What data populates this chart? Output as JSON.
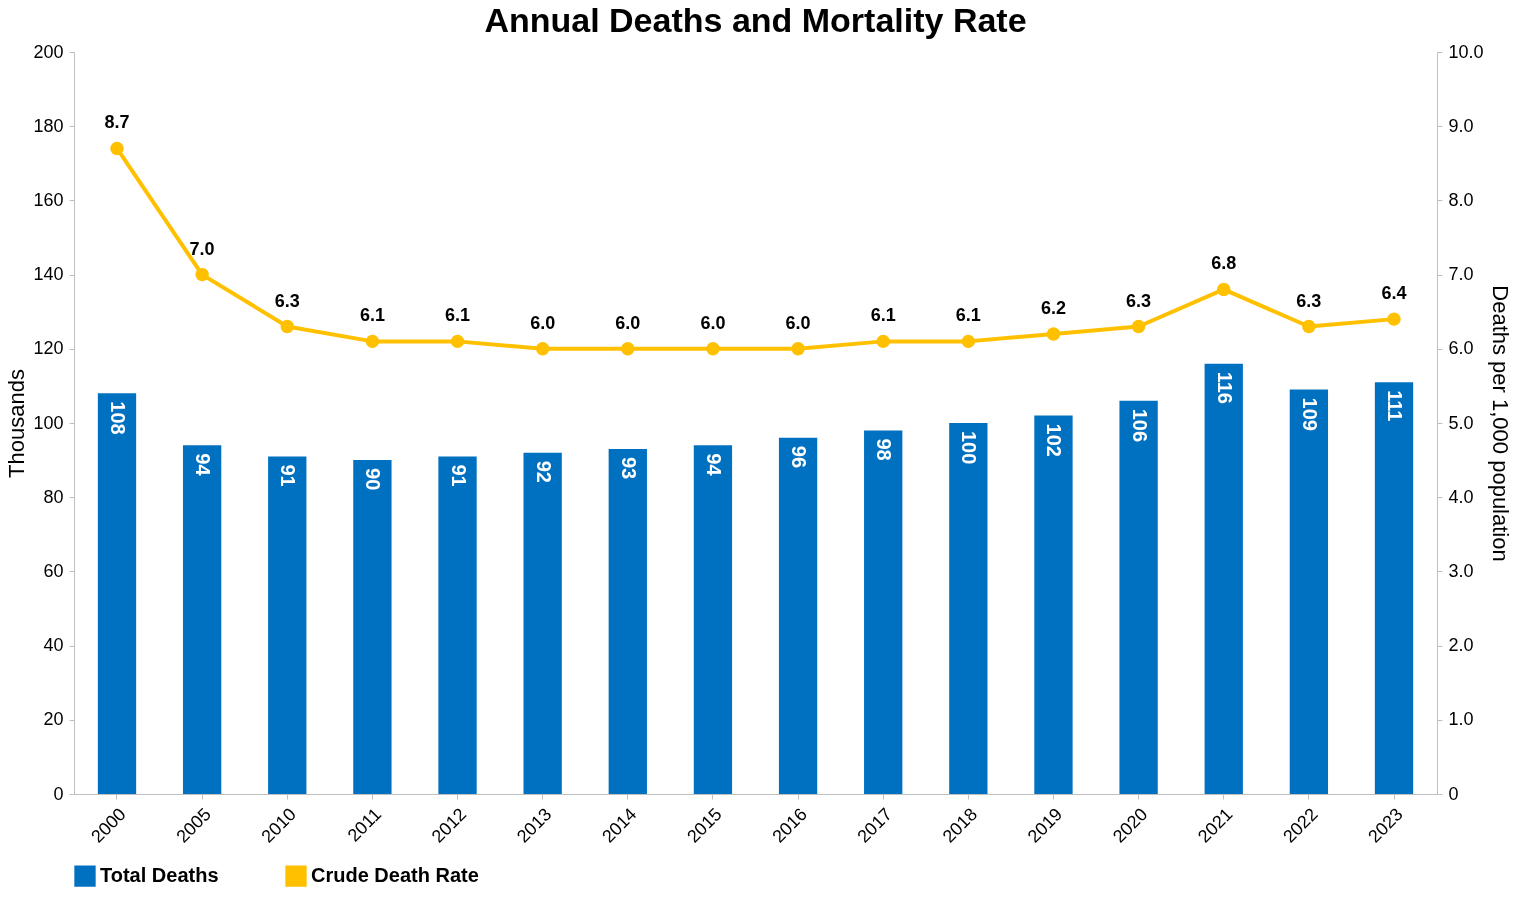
{
  "chart_data": {
    "type": "bar",
    "title": "Annual Deaths and Mortality Rate",
    "ylabel": "Thousands",
    "y2label": "Deaths per 1,000 population",
    "categories": [
      "2000",
      "2005",
      "2010",
      "2011",
      "2012",
      "2013",
      "2014",
      "2015",
      "2016",
      "2017",
      "2018",
      "2019",
      "2020",
      "2021",
      "2022",
      "2023"
    ],
    "series": [
      {
        "name": "Total Deaths",
        "color": "#0070c0",
        "values": [
          108,
          94,
          91,
          90,
          91,
          92,
          93,
          94,
          96,
          98,
          100,
          102,
          106,
          116,
          109,
          111
        ],
        "value_labels": [
          "108",
          "94",
          "91",
          "90",
          "91",
          "92",
          "93",
          "94",
          "96",
          "98",
          "100",
          "102",
          "106",
          "116",
          "109",
          "111"
        ]
      },
      {
        "name": "Crude Death Rate",
        "type": "line",
        "axis": "y2",
        "color": "#ffc000",
        "values": [
          8.7,
          7.0,
          6.3,
          6.1,
          6.1,
          6.0,
          6.0,
          6.0,
          6.0,
          6.1,
          6.1,
          6.2,
          6.3,
          6.8,
          6.3,
          6.4
        ],
        "value_labels": [
          "8.7",
          "7.0",
          "6.3",
          "6.1",
          "6.1",
          "6.0",
          "6.0",
          "6.0",
          "6.0",
          "6.1",
          "6.1",
          "6.2",
          "6.3",
          "6.8",
          "6.3",
          "6.4"
        ]
      }
    ],
    "ylim": [
      0,
      200
    ],
    "yticks": [
      0,
      20,
      40,
      60,
      80,
      100,
      120,
      140,
      160,
      180,
      200
    ],
    "y2lim": [
      0,
      10
    ],
    "y2ticks": [
      0,
      {
        "value": 1,
        "label": "1.0"
      },
      {
        "value": 2,
        "label": "2.0"
      },
      {
        "value": 3,
        "label": "3.0"
      },
      {
        "value": 4,
        "label": "4.0"
      },
      {
        "value": 5,
        "label": "5.0"
      },
      {
        "value": 6,
        "label": "6.0"
      },
      {
        "value": 7,
        "label": "7.0"
      },
      {
        "value": 8,
        "label": "8.0"
      },
      {
        "value": 9,
        "label": "9.0"
      },
      {
        "value": 10,
        "label": "10.0"
      }
    ],
    "grid": false,
    "legend": "bottom",
    "marker": "circle",
    "line_style": "solid"
  }
}
